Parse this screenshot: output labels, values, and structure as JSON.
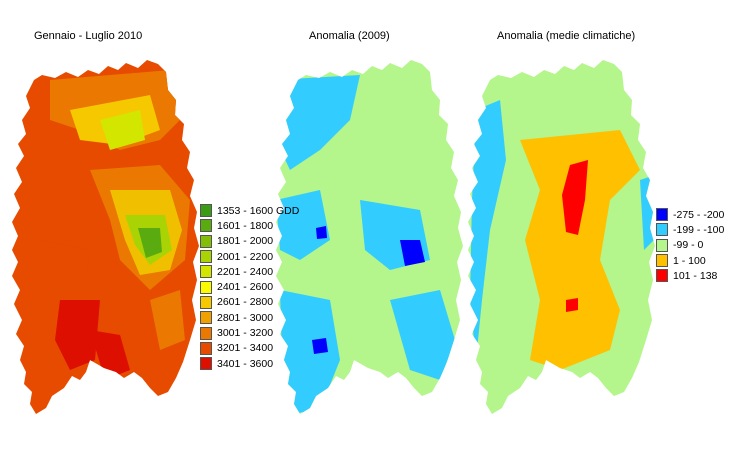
{
  "panels": [
    {
      "title": "Gennaio - Luglio 2010"
    },
    {
      "title": "Anomalia (2009)"
    },
    {
      "title": "Anomalia (medie climatiche)"
    }
  ],
  "legend_gdd": [
    {
      "label": "1353 - 1600 GDD",
      "color": "#3c9b14"
    },
    {
      "label": "1601 - 1800",
      "color": "#5aab10"
    },
    {
      "label": "1801 - 2000",
      "color": "#82be0a"
    },
    {
      "label": "2001 - 2200",
      "color": "#aad305"
    },
    {
      "label": "2201 - 2400",
      "color": "#d2e600"
    },
    {
      "label": "2401 - 2600",
      "color": "#fafa00"
    },
    {
      "label": "2601 - 2800",
      "color": "#f5c800"
    },
    {
      "label": "2801 - 3000",
      "color": "#f0a000"
    },
    {
      "label": "3001 - 3200",
      "color": "#eb7800"
    },
    {
      "label": "3201 - 3400",
      "color": "#e64b00"
    },
    {
      "label": "3401 - 3600",
      "color": "#dc0f00"
    }
  ],
  "legend_anomaly": [
    {
      "label": "-275 - -200",
      "color": "#0000ff"
    },
    {
      "label": "-199 - -100",
      "color": "#33ccff"
    },
    {
      "label": "-99 - 0",
      "color": "#b4f58c"
    },
    {
      "label": "1 - 100",
      "color": "#ffc000"
    },
    {
      "label": "101 - 138",
      "color": "#ff0000"
    }
  ]
}
